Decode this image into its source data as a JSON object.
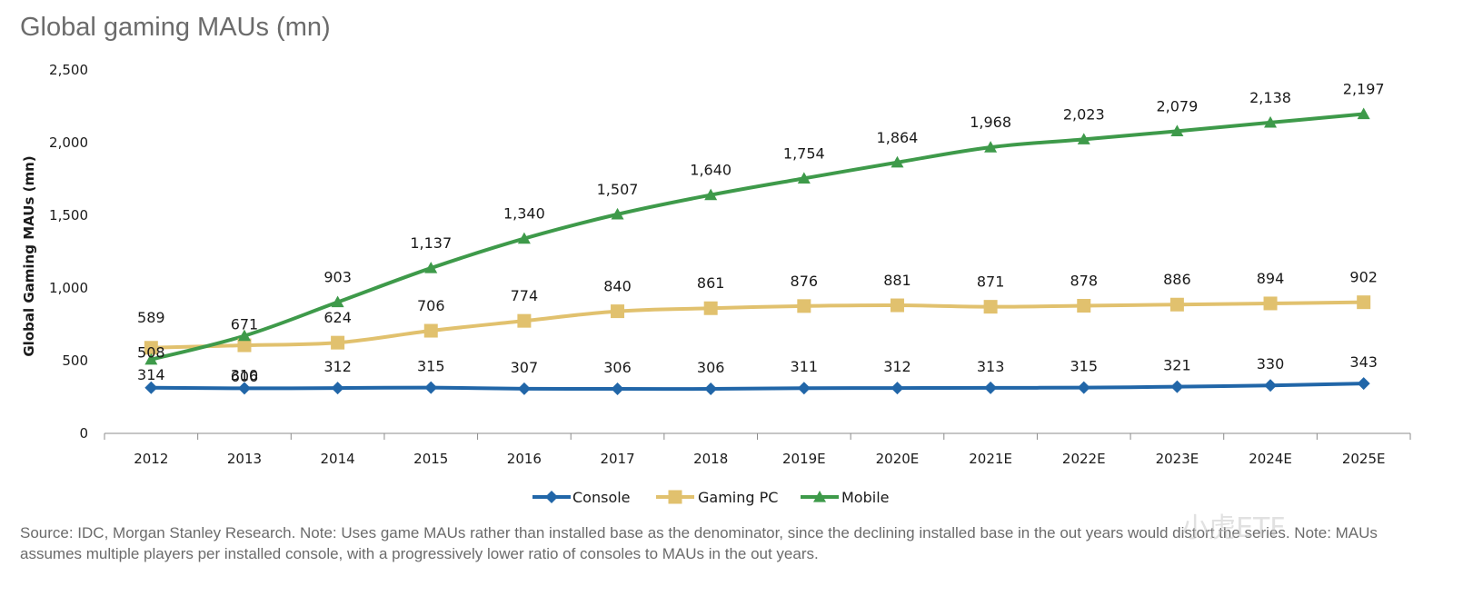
{
  "title": "Global gaming MAUs (mn)",
  "source_note": "Source: IDC, Morgan Stanley Research. Note: Uses game MAUs rather than installed base as the denominator, since the declining installed base in the out years would distort the series. Note: MAUs assumes multiple players per installed console, with a progressively lower ratio of consoles to MAUs in the out years.",
  "watermark": "小虎ETF",
  "chart_data": {
    "type": "line",
    "title": "Global gaming MAUs (mn)",
    "xlabel": "",
    "ylabel": "Global Gaming MAUs (mn)",
    "ylim": [
      0,
      2500
    ],
    "yticks": [
      0,
      500,
      1000,
      1500,
      2000,
      2500
    ],
    "ytick_labels": [
      "0",
      "500",
      "1,000",
      "1,500",
      "2,000",
      "2,500"
    ],
    "grid": false,
    "legend_position": "bottom-center",
    "categories": [
      "2012",
      "2013",
      "2014",
      "2015",
      "2016",
      "2017",
      "2018",
      "2019E",
      "2020E",
      "2021E",
      "2022E",
      "2023E",
      "2024E",
      "2025E"
    ],
    "series": [
      {
        "name": "Console",
        "color": "#2166a8",
        "marker": "diamond",
        "values": [
          314,
          310,
          312,
          315,
          307,
          306,
          306,
          311,
          312,
          313,
          315,
          321,
          330,
          343
        ],
        "labels": [
          "314",
          "310",
          "312",
          "315",
          "307",
          "306",
          "306",
          "311",
          "312",
          "313",
          "315",
          "321",
          "330",
          "343"
        ]
      },
      {
        "name": "Gaming PC",
        "color": "#e1c16e",
        "marker": "square",
        "values": [
          589,
          606,
          624,
          706,
          774,
          840,
          861,
          876,
          881,
          871,
          878,
          886,
          894,
          902
        ],
        "labels": [
          "589",
          "606",
          "624",
          "706",
          "774",
          "840",
          "861",
          "876",
          "881",
          "871",
          "878",
          "886",
          "894",
          "902"
        ]
      },
      {
        "name": "Mobile",
        "color": "#3e9a4a",
        "marker": "triangle",
        "values": [
          508,
          671,
          903,
          1137,
          1340,
          1507,
          1640,
          1754,
          1864,
          1968,
          2023,
          2079,
          2138,
          2197
        ],
        "labels": [
          "508",
          "671",
          "903",
          "1,137",
          "1,340",
          "1,507",
          "1,640",
          "1,754",
          "1,864",
          "1,968",
          "2,023",
          "2,079",
          "2,138",
          "2,197"
        ]
      }
    ]
  }
}
